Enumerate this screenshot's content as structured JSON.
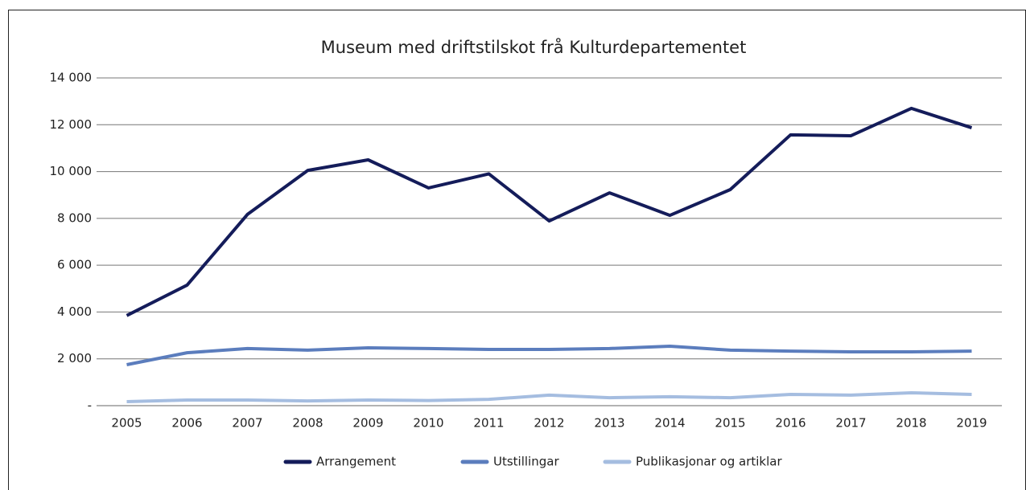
{
  "chart_data": {
    "type": "line",
    "title": "Museum med driftstilskot frå Kulturdepartementet",
    "categories": [
      "2005",
      "2006",
      "2007",
      "2008",
      "2009",
      "2010",
      "2011",
      "2012",
      "2013",
      "2014",
      "2015",
      "2016",
      "2017",
      "2018",
      "2019"
    ],
    "series": [
      {
        "name": "Arrangement",
        "color": "#141c5a",
        "values": [
          3850,
          5150,
          8170,
          10050,
          10500,
          9300,
          9900,
          7890,
          9090,
          8130,
          9230,
          11570,
          11530,
          12700,
          11870
        ]
      },
      {
        "name": "Utstillingar",
        "color": "#5b7dbd",
        "values": [
          1750,
          2260,
          2440,
          2370,
          2470,
          2440,
          2400,
          2400,
          2440,
          2540,
          2370,
          2330,
          2300,
          2300,
          2330
        ]
      },
      {
        "name": "Publikasjonar og artiklar",
        "color": "#a5bde0",
        "values": [
          170,
          240,
          240,
          200,
          240,
          220,
          270,
          450,
          340,
          380,
          340,
          480,
          450,
          550,
          480
        ]
      }
    ],
    "ylim": [
      0,
      14000
    ],
    "yticks": [
      {
        "value": 0,
        "label": "-"
      },
      {
        "value": 2000,
        "label": "2 000"
      },
      {
        "value": 4000,
        "label": "4 000"
      },
      {
        "value": 6000,
        "label": "6 000"
      },
      {
        "value": 8000,
        "label": "8 000"
      },
      {
        "value": 10000,
        "label": "10 000"
      },
      {
        "value": 12000,
        "label": "12 000"
      },
      {
        "value": 14000,
        "label": "14 000"
      }
    ],
    "grid": true,
    "legend": "bottom"
  }
}
